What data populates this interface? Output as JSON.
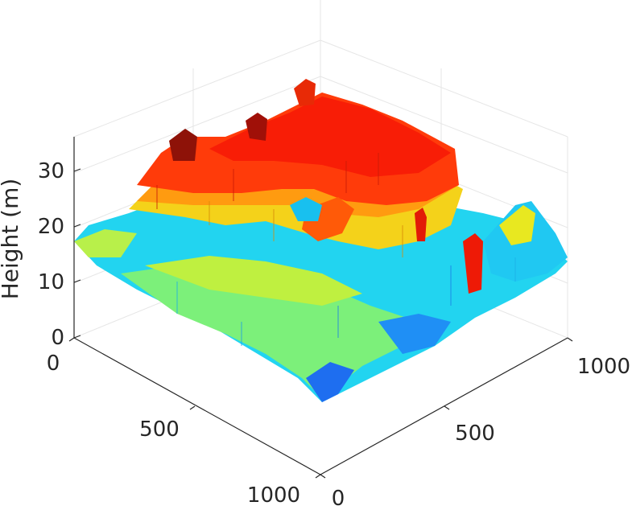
{
  "chart_data": {
    "type": "surface3d",
    "title": "",
    "xlabel": "",
    "ylabel": "",
    "zlabel": "Height (m)",
    "xlim": [
      0,
      1000
    ],
    "ylim": [
      0,
      1000
    ],
    "zlim": [
      0,
      35
    ],
    "x_ticks": [
      "0",
      "500",
      "1000"
    ],
    "y_ticks": [
      "0",
      "500",
      "1000"
    ],
    "z_ticks": [
      "0",
      "10",
      "20",
      "30"
    ],
    "colormap": "jet",
    "grid": true,
    "view": "isometric"
  }
}
